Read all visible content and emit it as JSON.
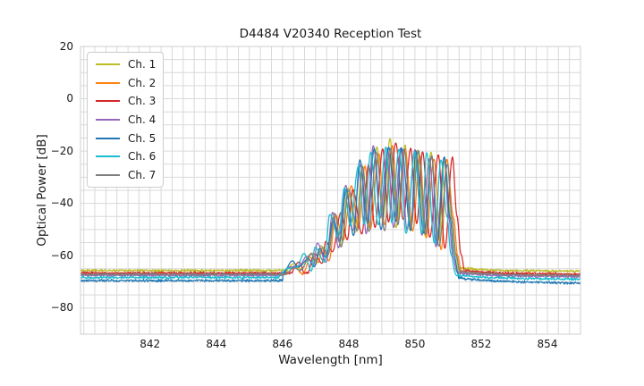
{
  "chart_data": {
    "type": "line",
    "title": "D4484 V20340 Reception Test",
    "xlabel": "Wavelength [nm]",
    "ylabel": "Optical Power [dB]",
    "xlim": [
      839.9,
      855.0
    ],
    "ylim": [
      -90,
      20
    ],
    "x_ticks": [
      842,
      844,
      846,
      848,
      850,
      852,
      854
    ],
    "y_ticks": [
      20,
      0,
      -20,
      -40,
      -60,
      -80
    ],
    "grid": {
      "color": "#d9d9d9",
      "border_color": "#cfcfcf",
      "x_minor_step_nm": 0.33333,
      "x_minor_origin_nm": 840,
      "y_minor_step_db": 5
    },
    "legend_position": "upper left",
    "series": [
      {
        "name": "Ch. 1",
        "color": "#bcbd22",
        "offset_nm": 0.0,
        "noise_floor_db": -65.6,
        "peak_db": -15.3,
        "right_slope_db_per_nm": -0.08,
        "seed": 11
      },
      {
        "name": "Ch. 2",
        "color": "#ff7f0e",
        "offset_nm": 0.07,
        "noise_floor_db": -67.0,
        "peak_db": -17.8,
        "right_slope_db_per_nm": -0.12,
        "seed": 22
      },
      {
        "name": "Ch. 3",
        "color": "#d62728",
        "offset_nm": 0.17,
        "noise_floor_db": -66.6,
        "peak_db": -17.0,
        "right_slope_db_per_nm": -0.12,
        "seed": 33
      },
      {
        "name": "Ch. 4",
        "color": "#9467bd",
        "offset_nm": -0.08,
        "noise_floor_db": -67.5,
        "peak_db": -19.0,
        "right_slope_db_per_nm": -0.14,
        "seed": 44
      },
      {
        "name": "Ch. 5",
        "color": "#1f77b4",
        "offset_nm": -0.04,
        "noise_floor_db": -69.5,
        "peak_db": -18.2,
        "right_slope_db_per_nm": -0.28,
        "seed": 55
      },
      {
        "name": "Ch. 6",
        "color": "#17becf",
        "offset_nm": -0.13,
        "noise_floor_db": -68.3,
        "peak_db": -18.4,
        "right_slope_db_per_nm": -0.18,
        "seed": 66
      },
      {
        "name": "Ch. 7",
        "color": "#7f7f7f",
        "offset_nm": 0.02,
        "noise_floor_db": -67.1,
        "peak_db": -18.8,
        "right_slope_db_per_nm": -0.12,
        "seed": 77
      }
    ],
    "band": {
      "description": "Reception band: comb of ~9 lobes (period 0.42 nm) rising from the noise floor near 846.3 nm to a maximum near 849.25 nm, then a sharp cliff back to the floor near 851.35 nm. Each channel = common envelope shifted by offset_nm with per-lobe variation.",
      "x_start_nm": 846.05,
      "x_end_nm": 851.35,
      "lobe_period_nm": 0.42,
      "envelope_anchors_nm_db": [
        [
          846.05,
          -66.8,
          "s"
        ],
        [
          846.32,
          -63.2,
          "p"
        ],
        [
          846.55,
          -65.6,
          "v"
        ],
        [
          846.82,
          -60.3,
          "p"
        ],
        [
          847.0,
          -63.4,
          "v"
        ],
        [
          847.15,
          -56.0,
          "p"
        ],
        [
          847.36,
          -60.0,
          "v"
        ],
        [
          847.57,
          -44.5,
          "p"
        ],
        [
          847.78,
          -54.5,
          "v"
        ],
        [
          847.99,
          -33.5,
          "p"
        ],
        [
          848.2,
          -50.5,
          "v"
        ],
        [
          848.41,
          -24.5,
          "p"
        ],
        [
          848.62,
          -49.5,
          "v"
        ],
        [
          848.83,
          -19.5,
          "p"
        ],
        [
          849.04,
          -48.0,
          "v"
        ],
        [
          849.25,
          -16.5,
          "m"
        ],
        [
          849.46,
          -48.0,
          "v"
        ],
        [
          849.67,
          -18.5,
          "p"
        ],
        [
          849.88,
          -49.5,
          "v"
        ],
        [
          850.09,
          -20.5,
          "p"
        ],
        [
          850.3,
          -52.5,
          "v"
        ],
        [
          850.51,
          -21.5,
          "p"
        ],
        [
          850.7,
          -55.5,
          "v"
        ],
        [
          850.93,
          -23.5,
          "p"
        ],
        [
          851.1,
          -45.0,
          "c"
        ],
        [
          851.22,
          -60.0,
          "c"
        ],
        [
          851.35,
          -66.5,
          "c"
        ]
      ]
    },
    "noise": {
      "floor_jitter_db": 0.55,
      "band_jitter_db": 0.12,
      "peak_jitter_db": 3.2,
      "valley_jitter_db": 5.0,
      "right_recovery_db": 1.1,
      "right_recovery_decay_nm": 0.55,
      "sample_step_nm": 0.015
    }
  }
}
